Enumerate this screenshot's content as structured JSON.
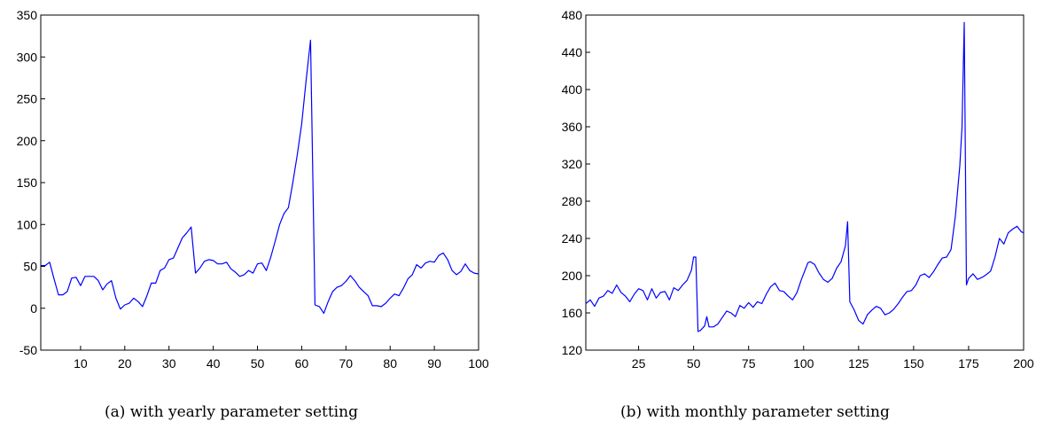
{
  "captions": {
    "a": "(a) with yearly parameter setting",
    "b": "(b) with monthly parameter setting"
  },
  "line_color": "#0000ff",
  "chart_data": [
    {
      "type": "line",
      "title": "",
      "xlabel": "",
      "ylabel": "",
      "xlim": [
        1,
        100
      ],
      "ylim": [
        -50,
        350
      ],
      "xticks": [
        10,
        20,
        30,
        40,
        50,
        60,
        70,
        80,
        90,
        100
      ],
      "yticks": [
        -50,
        0,
        50,
        100,
        150,
        200,
        250,
        300,
        350
      ],
      "grid": false,
      "series": [
        {
          "x": [
            1,
            2,
            3,
            4,
            5,
            6,
            7,
            8,
            9,
            10,
            11,
            12,
            13,
            14,
            15,
            16,
            17,
            18,
            19,
            20,
            21,
            22,
            23,
            24,
            25,
            26,
            27,
            28,
            29,
            30,
            31,
            32,
            33,
            34,
            35,
            36,
            37,
            38,
            39,
            40,
            41,
            42,
            43,
            44,
            45,
            46,
            47,
            48,
            49,
            50,
            51,
            52,
            53,
            54,
            55,
            56,
            57,
            58,
            59,
            60,
            61,
            62,
            63,
            64,
            65,
            66,
            67,
            68,
            69,
            70,
            71,
            72,
            73,
            74,
            75,
            76,
            77,
            78,
            79,
            80,
            81,
            82,
            83,
            84,
            85,
            86,
            87,
            88,
            89,
            90,
            91,
            92,
            93,
            94,
            95,
            96,
            97,
            98,
            99,
            100
          ],
          "values": [
            51,
            51,
            55,
            35,
            16,
            16,
            20,
            36,
            37,
            27,
            38,
            38,
            38,
            33,
            22,
            29,
            33,
            12,
            -1,
            4,
            6,
            12,
            8,
            2,
            15,
            30,
            30,
            45,
            48,
            58,
            60,
            72,
            84,
            90,
            97,
            42,
            48,
            56,
            58,
            57,
            53,
            53,
            55,
            47,
            43,
            38,
            40,
            45,
            42,
            53,
            54,
            45,
            61,
            80,
            100,
            113,
            120,
            150,
            183,
            220,
            272,
            320,
            4,
            2,
            -6,
            8,
            20,
            25,
            27,
            32,
            39,
            33,
            25,
            20,
            15,
            3,
            3,
            2,
            6,
            12,
            17,
            15,
            24,
            35,
            40,
            52,
            48,
            54,
            56,
            55,
            63,
            66,
            58,
            45,
            40,
            44,
            53,
            45,
            42,
            41
          ]
        }
      ]
    },
    {
      "type": "line",
      "title": "",
      "xlabel": "",
      "ylabel": "",
      "xlim": [
        1,
        200
      ],
      "ylim": [
        120,
        480
      ],
      "xticks": [
        25,
        50,
        75,
        100,
        125,
        150,
        175,
        200
      ],
      "yticks": [
        120,
        160,
        200,
        240,
        280,
        320,
        360,
        400,
        440,
        480
      ],
      "grid": false,
      "series": [
        {
          "x": [
            1,
            3,
            5,
            7,
            9,
            11,
            13,
            15,
            17,
            19,
            21,
            23,
            25,
            27,
            29,
            31,
            33,
            35,
            37,
            39,
            41,
            43,
            45,
            47,
            49,
            50,
            51,
            52,
            53,
            55,
            56,
            57,
            59,
            61,
            63,
            65,
            67,
            69,
            71,
            73,
            75,
            77,
            79,
            81,
            83,
            85,
            87,
            89,
            91,
            93,
            95,
            97,
            99,
            101,
            102,
            103,
            105,
            107,
            109,
            111,
            113,
            115,
            117,
            119,
            120,
            121,
            123,
            125,
            127,
            129,
            131,
            133,
            135,
            137,
            139,
            141,
            143,
            145,
            147,
            149,
            151,
            153,
            155,
            157,
            159,
            161,
            163,
            165,
            167,
            169,
            171,
            172,
            173,
            174,
            175,
            177,
            179,
            181,
            183,
            185,
            187,
            189,
            191,
            193,
            195,
            197,
            199,
            200
          ],
          "values": [
            170,
            174,
            167,
            176,
            178,
            184,
            181,
            190,
            182,
            178,
            172,
            180,
            186,
            184,
            174,
            186,
            176,
            182,
            183,
            174,
            187,
            184,
            190,
            195,
            206,
            220,
            220,
            140,
            141,
            146,
            156,
            145,
            145,
            148,
            155,
            162,
            160,
            156,
            168,
            165,
            171,
            166,
            172,
            170,
            180,
            188,
            192,
            184,
            183,
            178,
            174,
            182,
            196,
            208,
            214,
            215,
            212,
            203,
            196,
            193,
            197,
            208,
            215,
            232,
            258,
            172,
            163,
            152,
            148,
            158,
            163,
            167,
            165,
            158,
            160,
            164,
            170,
            177,
            183,
            184,
            190,
            200,
            202,
            198,
            204,
            212,
            219,
            220,
            228,
            264,
            318,
            360,
            472,
            190,
            197,
            202,
            196,
            198,
            201,
            205,
            220,
            240,
            234,
            246,
            250,
            253,
            247,
            246
          ]
        }
      ]
    }
  ]
}
